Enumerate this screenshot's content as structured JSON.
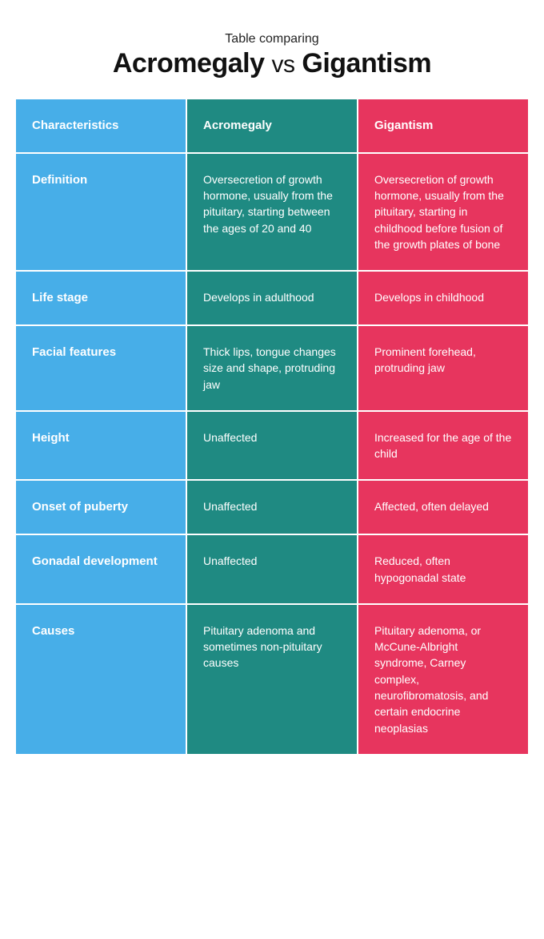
{
  "header": {
    "subtitle": "Table comparing",
    "title_left": "Acromegaly",
    "title_vs": "vs",
    "title_right": "Gigantism"
  },
  "table": {
    "columns": [
      "Characteristics",
      "Acromegaly",
      "Gigantism"
    ],
    "column_colors": [
      "#47aee8",
      "#1f8a82",
      "#e7355e"
    ],
    "text_color": "#ffffff",
    "gap_color": "#ffffff",
    "header_fontsize": 15,
    "body_fontsize": 14,
    "rows": [
      {
        "label": "Definition",
        "acromegaly": "Oversecretion of growth hormone, usually from the pituitary, starting between the ages of 20 and 40",
        "gigantism": "Oversecretion of growth hormone, usually from the pituitary, starting in childhood before fusion of the growth plates of bone"
      },
      {
        "label": "Life stage",
        "acromegaly": "Develops in adulthood",
        "gigantism": "Develops in childhood"
      },
      {
        "label": "Facial features",
        "acromegaly": "Thick lips, tongue changes size and shape, protruding jaw",
        "gigantism": "Prominent forehead, protruding jaw"
      },
      {
        "label": "Height",
        "acromegaly": "Unaffected",
        "gigantism": "Increased for the age of the child"
      },
      {
        "label": "Onset of puberty",
        "acromegaly": "Unaffected",
        "gigantism": "Affected, often delayed"
      },
      {
        "label": "Gonadal development",
        "acromegaly": "Unaffected",
        "gigantism": "Reduced, often hypogonadal state"
      },
      {
        "label": "Causes",
        "acromegaly": "Pituitary adenoma and sometimes non-pituitary causes",
        "gigantism": "Pituitary adenoma, or McCune-Albright syndrome,  Carney complex, neurofibromatosis, and certain endocrine neoplasias"
      }
    ]
  }
}
